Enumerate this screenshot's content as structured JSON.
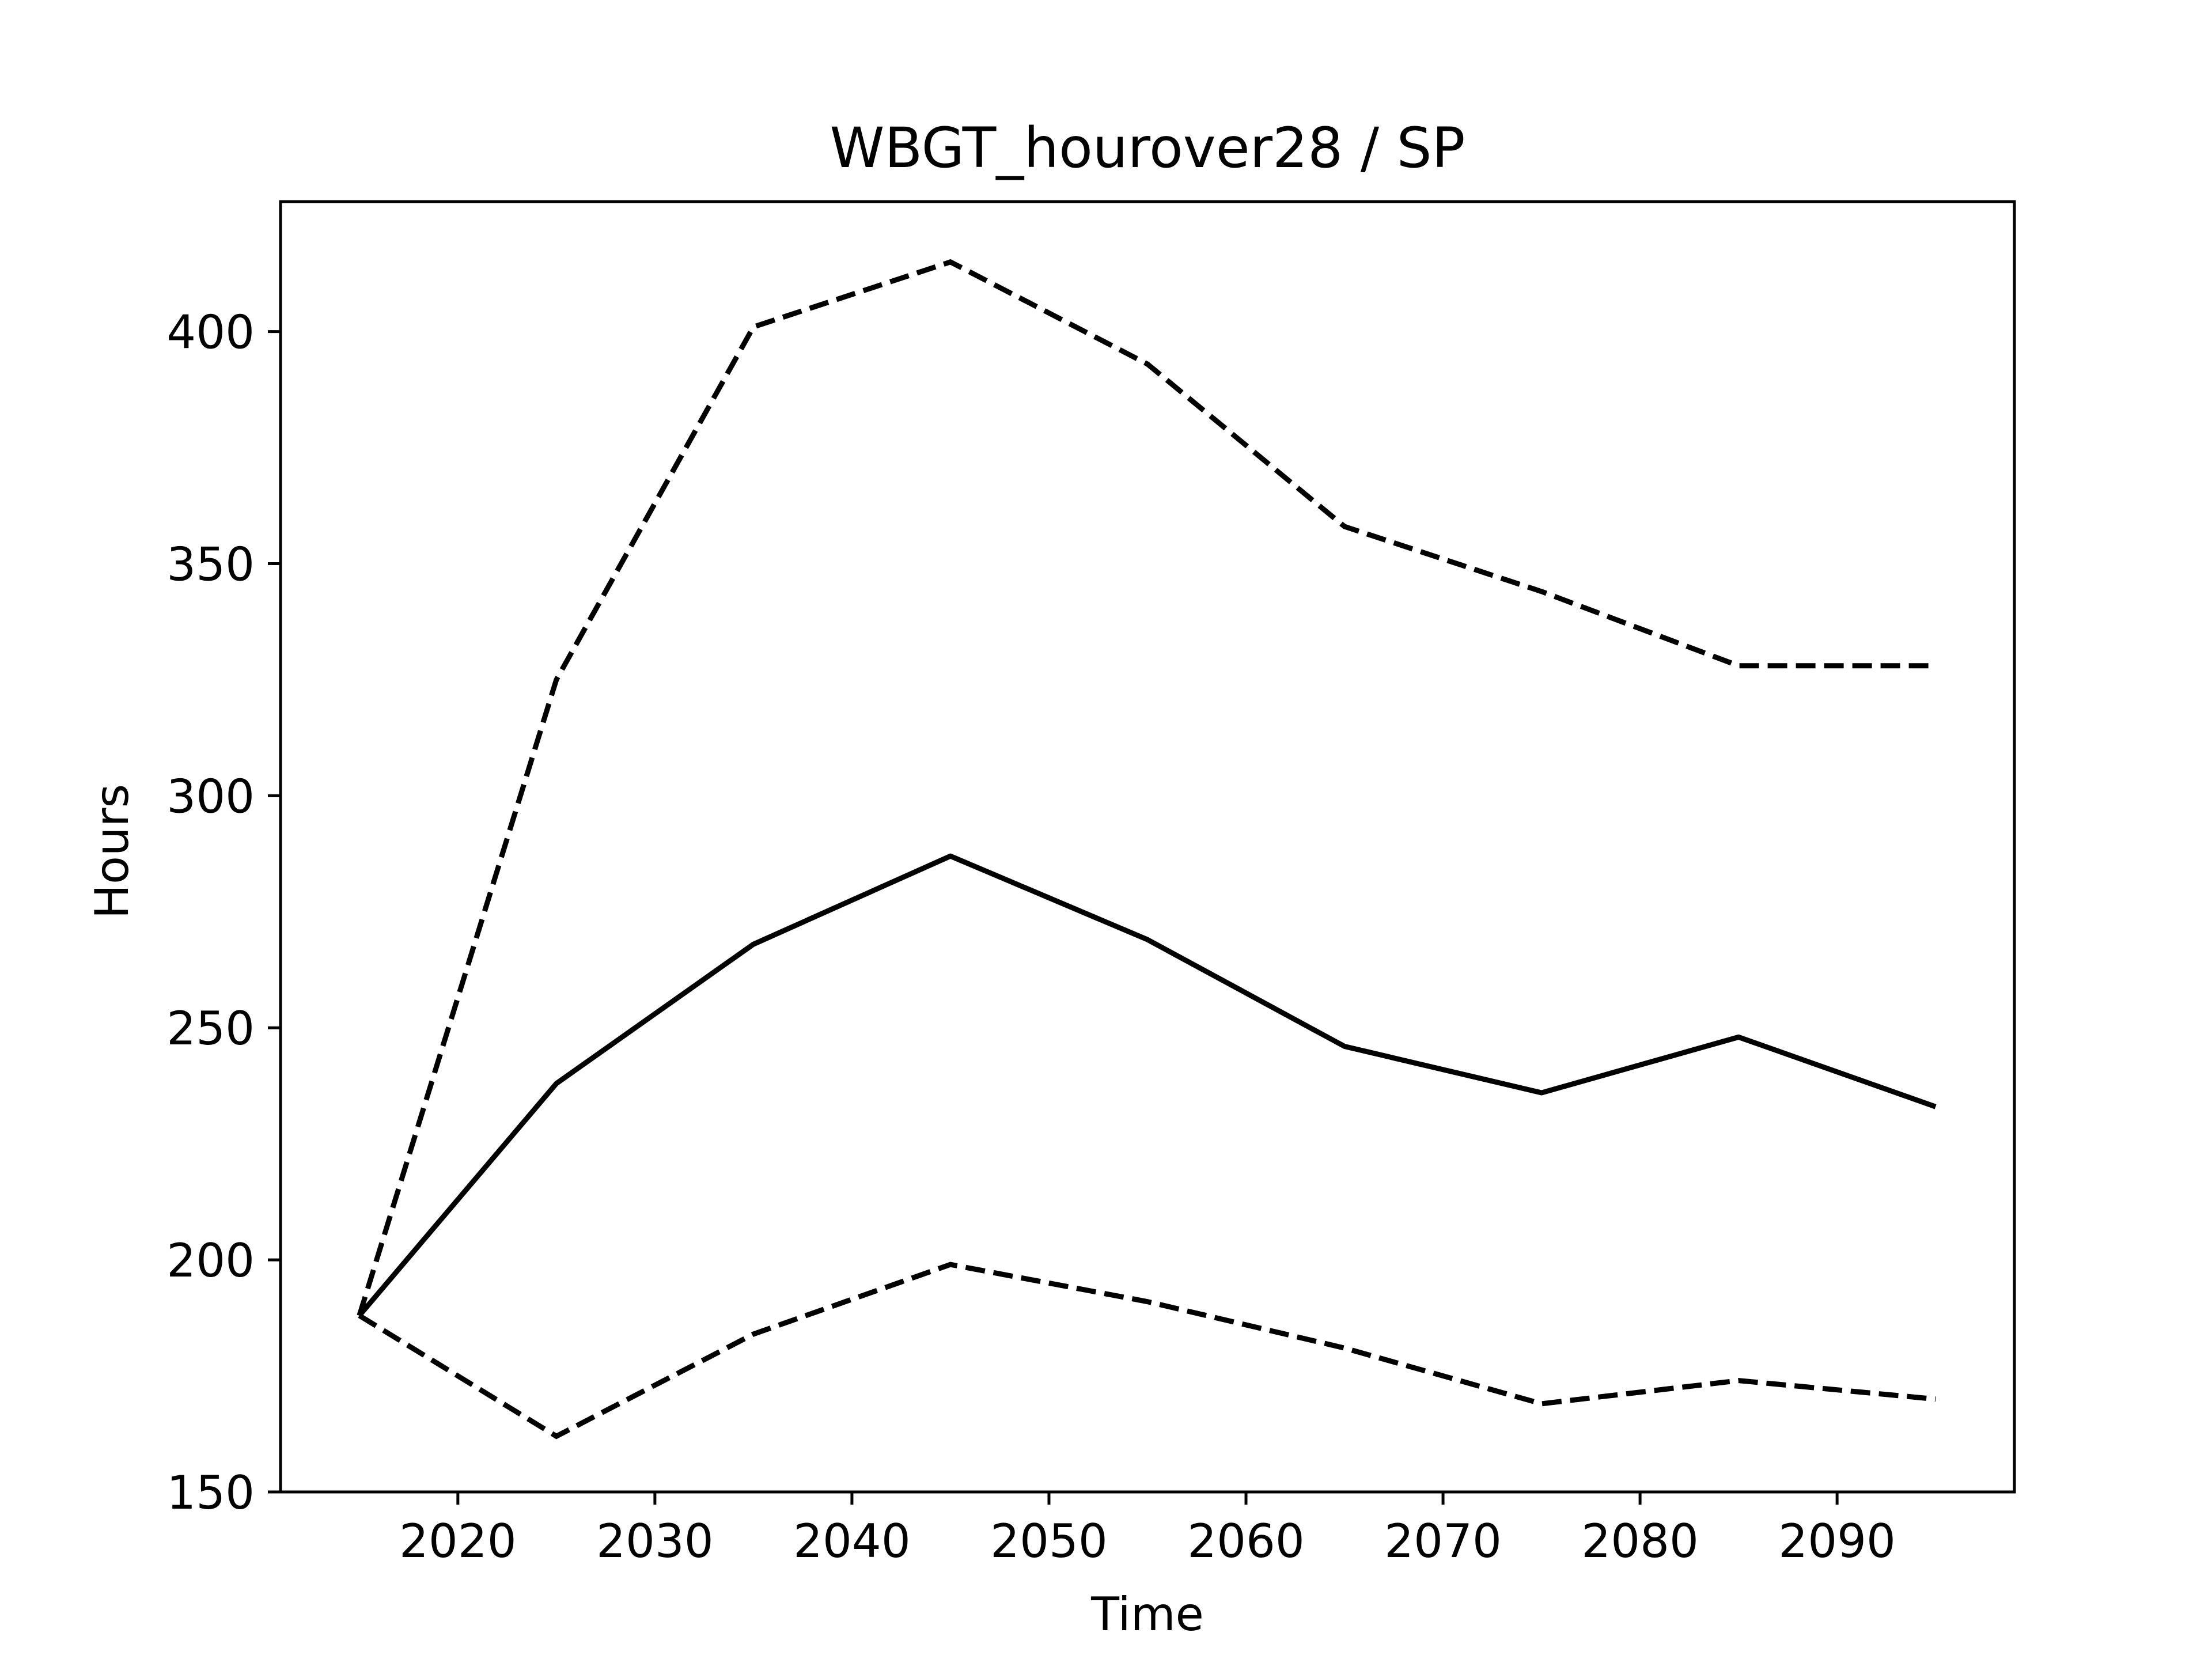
{
  "chart_data": {
    "type": "line",
    "title": "WBGT_hourover28 / SP",
    "xlabel": "Time",
    "ylabel": "Hours",
    "xlim": [
      2011,
      2099
    ],
    "ylim": [
      150,
      428
    ],
    "xticks": [
      2020,
      2030,
      2040,
      2050,
      2060,
      2070,
      2080,
      2090
    ],
    "yticks": [
      150,
      200,
      250,
      300,
      350,
      400
    ],
    "grid": false,
    "x": [
      2015,
      2025,
      2035,
      2045,
      2055,
      2065,
      2075,
      2085,
      2095
    ],
    "series": [
      {
        "style": "solid",
        "color": "#000000",
        "values": [
          188,
          238,
          268,
          287,
          269,
          246,
          236,
          248,
          233
        ]
      },
      {
        "style": "dashed",
        "color": "#000000",
        "values": [
          188,
          325,
          401,
          415,
          393,
          358,
          344,
          328,
          328
        ]
      },
      {
        "style": "dashed",
        "color": "#000000",
        "values": [
          188,
          162,
          184,
          199,
          191,
          181,
          169,
          174,
          170
        ]
      }
    ]
  }
}
